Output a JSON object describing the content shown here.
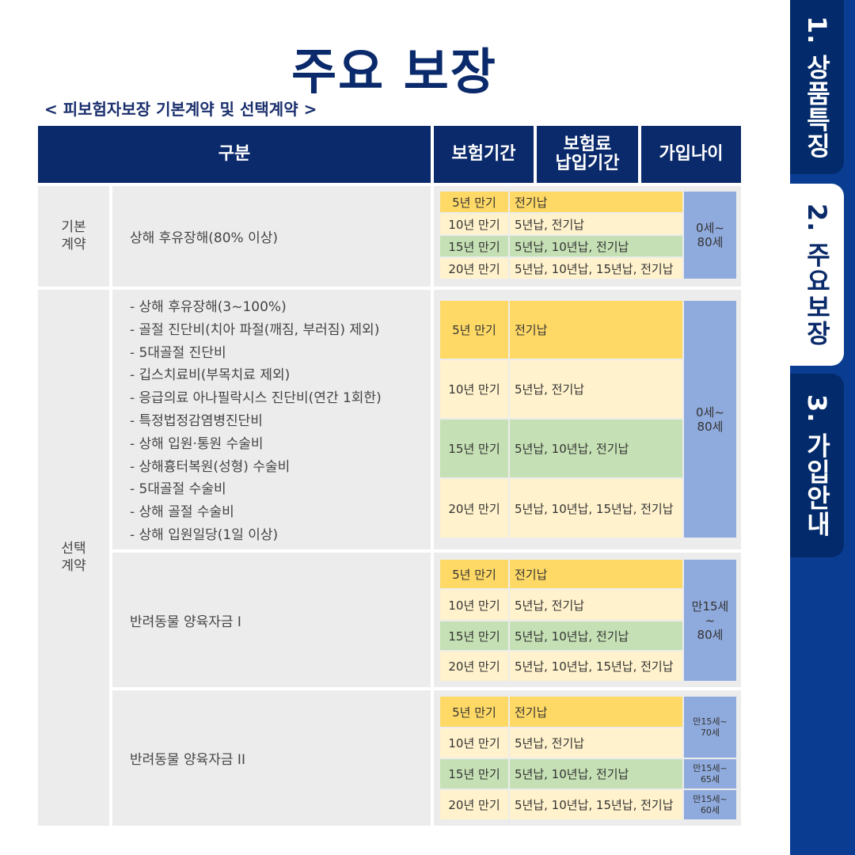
{
  "title": "주요 보장",
  "subtitle": "< 피보험자보장 기본계약 및 선택계약 >",
  "tabs": [
    "1. 상품특징",
    "2. 주요보장",
    "3. 가입안내"
  ],
  "header": {
    "category": "구분",
    "insurance_period": "보험기간",
    "payment_period_l1": "보험료",
    "payment_period_l2": "납입기간",
    "join_age": "가입나이"
  },
  "groups": {
    "basic": "기본\n계약",
    "optional": "선택\n계약"
  },
  "rows": [
    {
      "coverage": "상해 후유장해(80% 이상)",
      "terms": [
        "5년 만기",
        "10년 만기",
        "15년 만기",
        "20년 만기"
      ],
      "pays": [
        "전기납",
        "5년납, 전기납",
        "5년납, 10년납, 전기납",
        "5년납, 10년납, 15년납, 전기납"
      ],
      "age": "0세~\n80세"
    },
    {
      "coverage_list": [
        "- 상해 후유장해(3~100%)",
        "- 골절 진단비(치아 파절(깨짐, 부러짐) 제외)",
        "- 5대골절 진단비",
        "- 깁스치료비(부목치료 제외)",
        "- 응급의료 아나필락시스 진단비(연간 1회한)",
        "- 특정법정감염병진단비",
        "- 상해 입원·통원 수술비",
        "- 상해흉터복원(성형) 수술비",
        "- 5대골절 수술비",
        "- 상해 골절 수술비",
        "- 상해 입원일당(1일 이상)"
      ],
      "terms": [
        "5년 만기",
        "10년 만기",
        "15년 만기",
        "20년 만기"
      ],
      "pays": [
        "전기납",
        "5년납, 전기납",
        "5년납, 10년납, 전기납",
        "5년납, 10년납, 15년납, 전기납"
      ],
      "age": "0세~\n80세"
    },
    {
      "coverage": "반려동물 양육자금 I",
      "terms": [
        "5년 만기",
        "10년 만기",
        "15년 만기",
        "20년 만기"
      ],
      "pays": [
        "전기납",
        "5년납, 전기납",
        "5년납, 10년납, 전기납",
        "5년납, 10년납, 15년납, 전기납"
      ],
      "age": "만15세\n~\n80세"
    },
    {
      "coverage": "반려동물 양육자금 II",
      "terms": [
        "5년 만기",
        "10년 만기",
        "15년 만기",
        "20년 만기"
      ],
      "pays": [
        "전기납",
        "5년납, 전기납",
        "5년납, 10년납, 전기납",
        "5년납, 10년납, 15년납, 전기납"
      ],
      "ages": [
        "만15세~\n70세",
        "만15세~\n65세",
        "만15세~\n60세"
      ]
    }
  ],
  "colors": {
    "navy": "#0b2a6b",
    "dark_yellow": "#ffd966",
    "light_yellow": "#fff2cc",
    "green": "#c5e0b4",
    "blue": "#8faadc",
    "gray": "#ececec"
  }
}
